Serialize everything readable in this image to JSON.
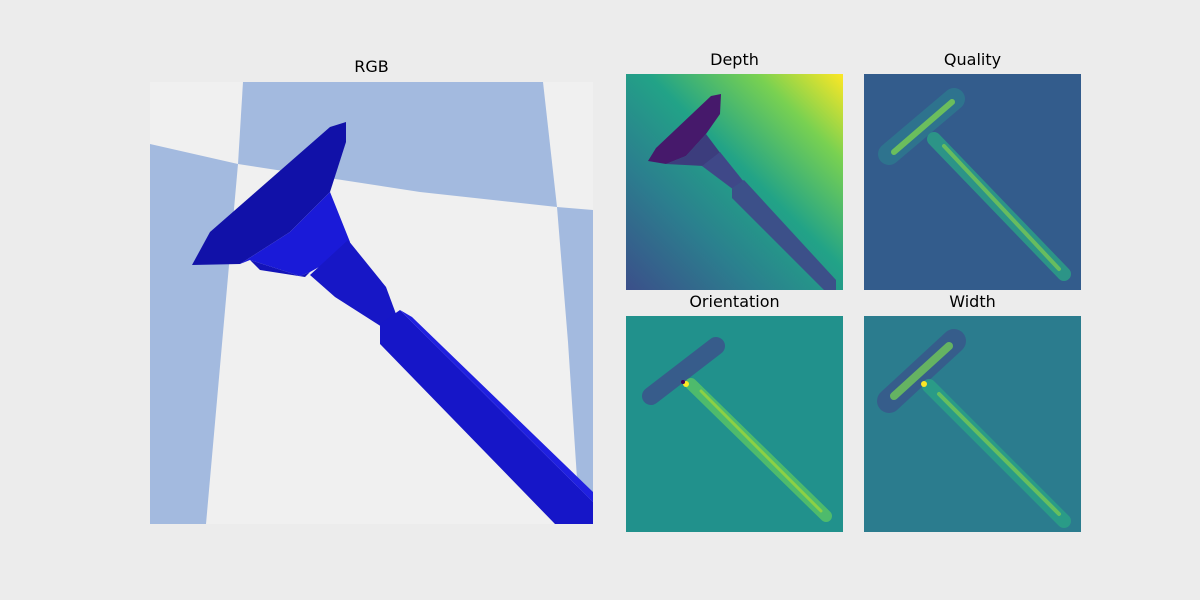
{
  "panels": {
    "rgb": {
      "title": "RGB"
    },
    "depth": {
      "title": "Depth"
    },
    "quality": {
      "title": "Quality"
    },
    "orientation": {
      "title": "Orientation"
    },
    "width": {
      "title": "Width"
    }
  },
  "colors": {
    "figure_bg": "#ececec",
    "rgb_floor_light": "#f0f0f0",
    "rgb_floor_blue": "#a3badf",
    "object_blue": "#1515d8",
    "viridis_dark": "#440154",
    "viridis_mid": "#21918c",
    "viridis_yellow": "#fde725"
  }
}
